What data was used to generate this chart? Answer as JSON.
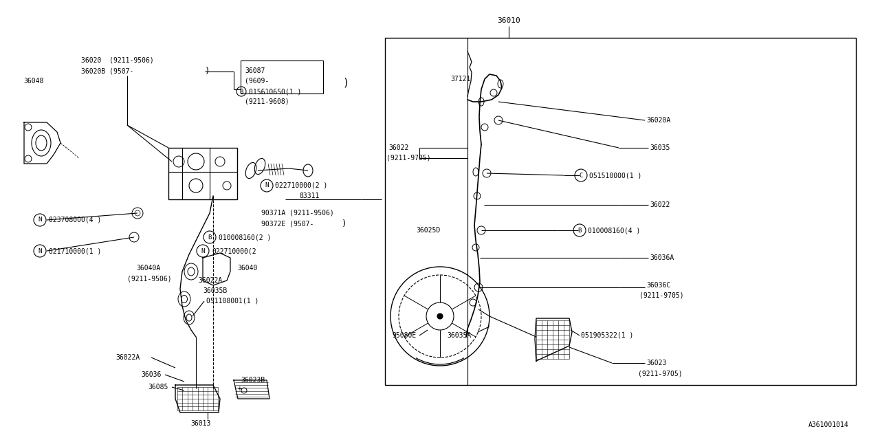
{
  "bg_color": "#ffffff",
  "line_color": "#000000",
  "text_color": "#000000",
  "font_family": "DejaVu Sans Mono",
  "font_size": 7.0,
  "watermark": "A361001014",
  "fig_w": 12.8,
  "fig_h": 6.4,
  "dpi": 100,
  "xlim": [
    0,
    1280
  ],
  "ylim": [
    0,
    640
  ]
}
